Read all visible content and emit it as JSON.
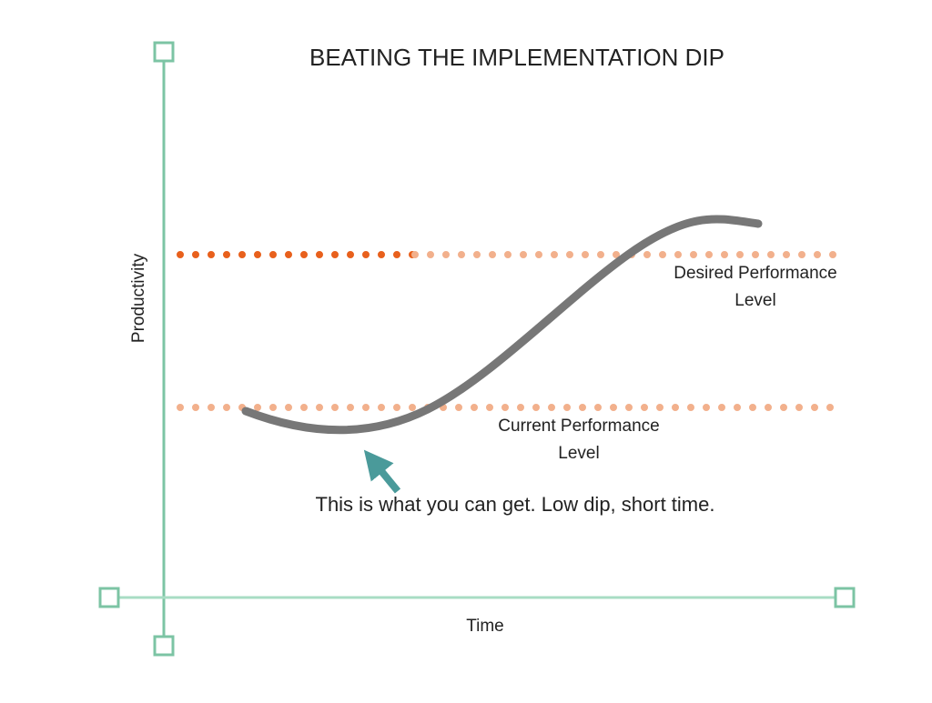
{
  "title": "BEATING THE IMPLEMENTATION DIP",
  "y_axis_label": "Productivity",
  "x_axis_label": "Time",
  "levels": [
    {
      "label_lines": [
        "Desired Performance",
        "Level"
      ]
    },
    {
      "label_lines": [
        "Current Performance",
        "Level"
      ]
    }
  ],
  "annotation": "This is what you can get. Low dip, short time."
}
